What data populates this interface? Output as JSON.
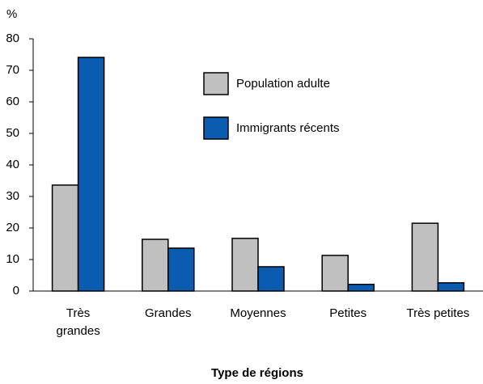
{
  "chart_data": {
    "type": "bar",
    "y_label": "%",
    "x_label": "Type de régions",
    "categories": [
      "Très grandes",
      "Grandes",
      "Moyennes",
      "Petites",
      "Très petites"
    ],
    "series": [
      {
        "name": "Population adulte",
        "color": "#c0c0c0",
        "values": [
          33.6,
          16.4,
          16.7,
          11.3,
          21.5
        ]
      },
      {
        "name": "Immigrants récents",
        "color": "#0a5cb0",
        "values": [
          74.1,
          13.6,
          7.7,
          2.1,
          2.6
        ]
      }
    ],
    "ylim": [
      0,
      80
    ],
    "yticks": [
      0,
      10,
      20,
      30,
      40,
      50,
      60,
      70,
      80
    ]
  }
}
